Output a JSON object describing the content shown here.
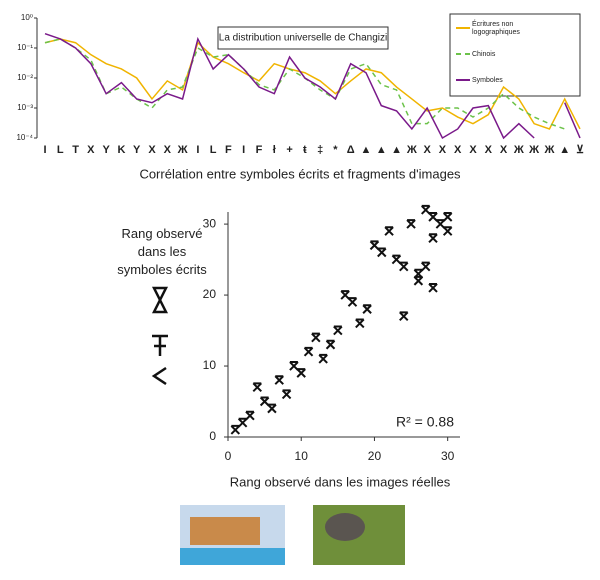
{
  "chart_data": [
    {
      "type": "line",
      "title": "La distribution universelle de Changizi",
      "log_y": true,
      "ylim": [
        0.0001,
        1
      ],
      "yticks": [
        {
          "value": 1,
          "label": "10⁰"
        },
        {
          "value": 0.1,
          "label": "10⁻¹"
        },
        {
          "value": 0.01,
          "label": "10⁻²"
        },
        {
          "value": 0.001,
          "label": "10⁻³"
        },
        {
          "value": 0.0001,
          "label": "10⁻⁴"
        }
      ],
      "categories": [
        "I",
        "L",
        "T",
        "X",
        "Y",
        "K",
        "Y",
        "X",
        "X",
        "Ж",
        "I",
        "L",
        "F",
        "I",
        "F",
        "ł",
        "+",
        "ŧ",
        "‡",
        "*",
        "Δ",
        "▲",
        "▲",
        "▲",
        "Ж",
        "X",
        "X",
        "X",
        "X",
        "X",
        "X",
        "Ж",
        "Ж",
        "Ж",
        "▲",
        "⊻"
      ],
      "legend": "upper right",
      "series": [
        {
          "name": "Écritures non logographiques",
          "color": "#f0b400",
          "dash": "none",
          "values": [
            0.15,
            0.2,
            0.15,
            0.06,
            0.03,
            0.02,
            0.01,
            0.002,
            0.008,
            0.004,
            0.15,
            0.05,
            0.03,
            0.015,
            0.008,
            0.03,
            0.02,
            0.015,
            0.008,
            0.003,
            0.008,
            0.02,
            0.015,
            0.005,
            0.002,
            0.0008,
            0.001,
            0.0005,
            0.0003,
            0.0006,
            0.005,
            0.002,
            0.0003,
            0.0002,
            0.002,
            0.0002
          ]
        },
        {
          "name": "Chinois",
          "color": "#6cc24a",
          "dash": "5 4",
          "values": [
            0.15,
            0.2,
            0.1,
            0.04,
            0.003,
            0.005,
            0.002,
            0.001,
            0.004,
            0.005,
            0.1,
            0.05,
            0.06,
            0.02,
            0.006,
            0.004,
            0.02,
            0.01,
            0.004,
            0.002,
            0.02,
            0.03,
            0.006,
            0.004,
            0.0003,
            0.0003,
            0.001,
            0.001,
            0.0005,
            0.001,
            0.003,
            0.001,
            0.0005,
            0.0003,
            0.0002,
            null
          ]
        },
        {
          "name": "Symboles",
          "color": "#7a1a8a",
          "dash": "none",
          "values": [
            0.3,
            0.2,
            0.1,
            0.03,
            0.003,
            0.007,
            0.002,
            0.0015,
            0.003,
            0.002,
            0.2,
            0.02,
            0.06,
            0.02,
            0.005,
            0.003,
            0.05,
            0.01,
            0.005,
            0.002,
            0.03,
            0.015,
            0.0012,
            0.0008,
            0.0002,
            0.001,
            0.0001,
            0.0002,
            0.001,
            0.0012,
            0.0001,
            0.0003,
            0.0001,
            null,
            0.0015,
            0.0001
          ]
        }
      ]
    },
    {
      "type": "scatter",
      "title": "Corrélation entre symboles écrits et fragments d'images",
      "xlabel": "Rang observé dans les images réelles",
      "ylabel": "Rang observé dans les symboles écrits",
      "annotation": "R² = 0.88",
      "xlim": [
        0,
        31
      ],
      "ylim": [
        0,
        31
      ],
      "xticks": [
        0,
        10,
        20,
        30
      ],
      "yticks": [
        0,
        10,
        20,
        30
      ],
      "color": "#111",
      "x": [
        1,
        2,
        3,
        4,
        5,
        6,
        7,
        8,
        9,
        10,
        11,
        12,
        13,
        14,
        15,
        16,
        17,
        18,
        19,
        20,
        21,
        22,
        23,
        24,
        24,
        25,
        26,
        26,
        27,
        27,
        28,
        28,
        28,
        29,
        30,
        30
      ],
      "values": [
        1,
        2,
        3,
        7,
        5,
        4,
        8,
        6,
        10,
        9,
        12,
        14,
        11,
        13,
        15,
        20,
        19,
        16,
        18,
        27,
        26,
        29,
        25,
        24,
        17,
        30,
        22,
        23,
        32,
        24,
        21,
        28,
        31,
        30,
        29,
        31
      ]
    }
  ]
}
